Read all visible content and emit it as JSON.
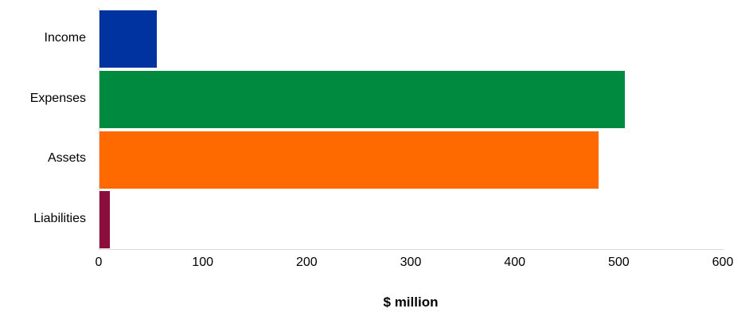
{
  "chart_data": {
    "type": "bar",
    "orientation": "horizontal",
    "title": "",
    "xlabel": "$ million",
    "ylabel": "",
    "categories": [
      "Income",
      "Expenses",
      "Assets",
      "Liabilities"
    ],
    "values": [
      55,
      505,
      480,
      10
    ],
    "bar_colors": [
      "#0033A0",
      "#008A40",
      "#FF6A00",
      "#8B0D3C"
    ],
    "xlim": [
      0,
      600
    ],
    "xticks": [
      0,
      100,
      200,
      300,
      400,
      500,
      600
    ],
    "grid": false,
    "legend": "none",
    "axis_line_color": "#D9D9D9",
    "text_color": "#000000",
    "background_color": "#FFFFFF"
  }
}
